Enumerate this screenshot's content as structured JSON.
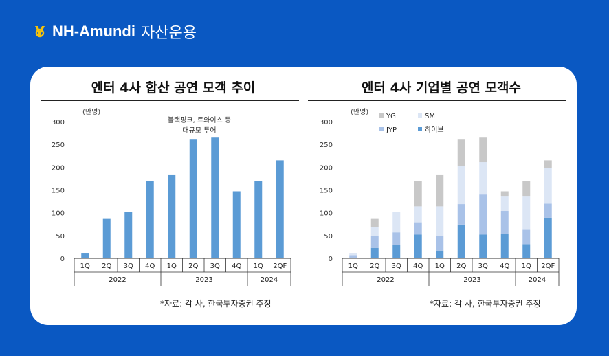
{
  "header": {
    "brand_main": "NH-Amundi",
    "brand_sub": "자산운용"
  },
  "colors": {
    "background": "#0a58c2",
    "bar": "#5b9bd5",
    "hybe": "#5b9bd5",
    "jyp": "#a9c2e8",
    "sm": "#dce6f5",
    "yg": "#c8c8c8"
  },
  "chart_data": [
    {
      "type": "bar",
      "title": "엔터 4사 합산 공연 모객 추이",
      "unit_label": "(만명)",
      "ylim": [
        0,
        300
      ],
      "yticks": [
        0,
        50,
        100,
        150,
        200,
        250,
        300
      ],
      "categories": [
        "1Q",
        "2Q",
        "3Q",
        "4Q",
        "1Q",
        "2Q",
        "3Q",
        "4Q",
        "1Q",
        "2QF"
      ],
      "year_groups": [
        {
          "label": "2022",
          "start": 0,
          "end": 3
        },
        {
          "label": "2023",
          "start": 4,
          "end": 7
        },
        {
          "label": "2024",
          "start": 8,
          "end": 9
        }
      ],
      "values": [
        12,
        88,
        101,
        170,
        184,
        262,
        265,
        147,
        170,
        215
      ],
      "annotation": [
        "블랙핑크, 트와이스 등",
        "대규모 투어"
      ],
      "source": "*자료: 각 사, 한국투자증권 추정",
      "grid": false
    },
    {
      "type": "stacked_bar",
      "title": "엔터 4사 기업별 공연 모객수",
      "unit_label": "(만명)",
      "ylim": [
        0,
        300
      ],
      "yticks": [
        0,
        50,
        100,
        150,
        200,
        250,
        300
      ],
      "categories": [
        "1Q",
        "2Q",
        "3Q",
        "4Q",
        "1Q",
        "2Q",
        "3Q",
        "4Q",
        "1Q",
        "2QF"
      ],
      "year_groups": [
        {
          "label": "2022",
          "start": 0,
          "end": 3
        },
        {
          "label": "2023",
          "start": 4,
          "end": 7
        },
        {
          "label": "2024",
          "start": 8,
          "end": 9
        }
      ],
      "legend": [
        "YG",
        "SM",
        "JYP",
        "하이브"
      ],
      "legend_position": "top-left",
      "series": [
        {
          "name": "하이브",
          "color": "#5b9bd5",
          "values": [
            0,
            23,
            30,
            52,
            17,
            74,
            52,
            54,
            31,
            89
          ]
        },
        {
          "name": "JYP",
          "color": "#a9c2e8",
          "values": [
            7,
            26,
            27,
            27,
            32,
            45,
            88,
            50,
            33,
            31
          ]
        },
        {
          "name": "SM",
          "color": "#dce6f5",
          "values": [
            5,
            20,
            44,
            35,
            65,
            84,
            71,
            33,
            73,
            79
          ]
        },
        {
          "name": "YG",
          "color": "#c8c8c8",
          "values": [
            0,
            19,
            0,
            56,
            70,
            59,
            54,
            10,
            33,
            16
          ]
        }
      ],
      "source": "*자료: 각 사, 한국투자증권 추정",
      "grid": false
    }
  ]
}
